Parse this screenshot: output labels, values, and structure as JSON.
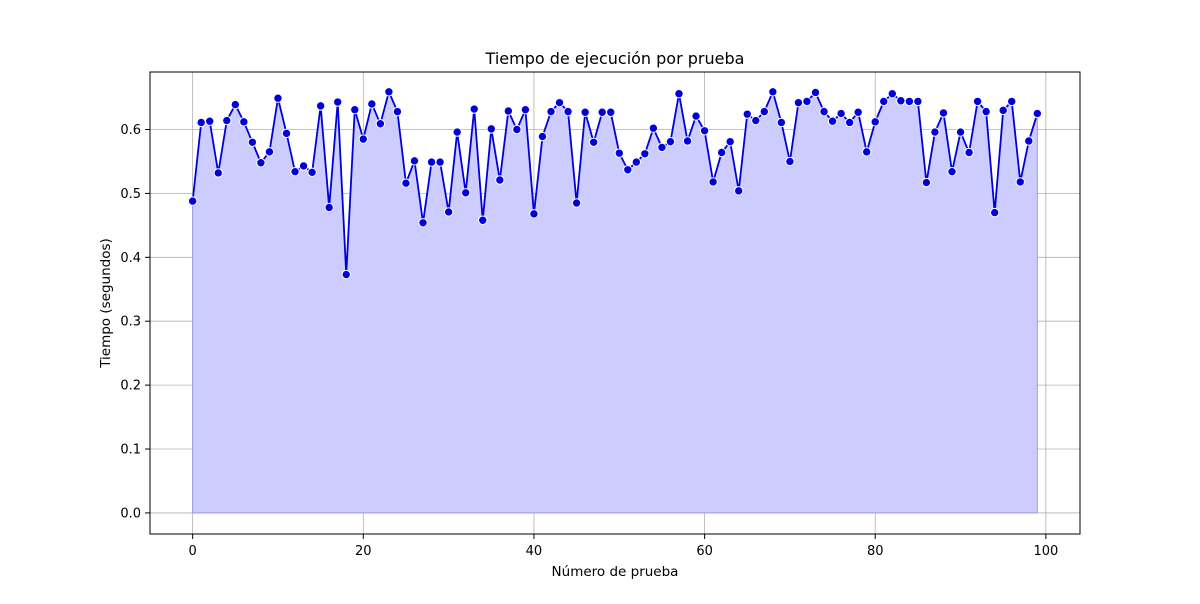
{
  "chart_data": {
    "type": "line",
    "title": "Tiempo de ejecución por prueba",
    "xlabel": "Número de prueba",
    "ylabel": "Tiempo (segundos)",
    "xlim": [
      -5,
      104
    ],
    "ylim": [
      -0.033,
      0.69
    ],
    "xticks": [
      0,
      20,
      40,
      60,
      80,
      100
    ],
    "yticks": [
      0.0,
      0.1,
      0.2,
      0.3,
      0.4,
      0.5,
      0.6
    ],
    "xtick_labels": [
      "0",
      "20",
      "40",
      "60",
      "80",
      "100"
    ],
    "ytick_labels": [
      "0.0",
      "0.1",
      "0.2",
      "0.3",
      "0.4",
      "0.5",
      "0.6"
    ],
    "grid": true,
    "area_fill": true,
    "colors": {
      "line": "#0000dd",
      "marker": "#0000dd",
      "marker_edge": "#ffffff",
      "fill": "#ccccff",
      "grid": "#b0b0b0",
      "axes": "#000000"
    },
    "series": [
      {
        "x": [
          0,
          1,
          2,
          3,
          4,
          5,
          6,
          7,
          8,
          9,
          10,
          11,
          12,
          13,
          14,
          15,
          16,
          17,
          18,
          19,
          20,
          21,
          22,
          23,
          24,
          25,
          26,
          27,
          28,
          29,
          30,
          31,
          32,
          33,
          34,
          35,
          36,
          37,
          38,
          39,
          40,
          41,
          42,
          43,
          44,
          45,
          46,
          47,
          48,
          49,
          50,
          51,
          52,
          53,
          54,
          55,
          56,
          57,
          58,
          59,
          60,
          61,
          62,
          63,
          64,
          65,
          66,
          67,
          68,
          69,
          70,
          71,
          72,
          73,
          74,
          75,
          76,
          77,
          78,
          79,
          80,
          81,
          82,
          83,
          84,
          85,
          86,
          87,
          88,
          89,
          90,
          91,
          92,
          93,
          94,
          95,
          96,
          97,
          98,
          99
        ],
        "values": [
          0.488,
          0.611,
          0.613,
          0.532,
          0.614,
          0.639,
          0.612,
          0.58,
          0.548,
          0.565,
          0.649,
          0.594,
          0.534,
          0.543,
          0.533,
          0.637,
          0.478,
          0.643,
          0.373,
          0.631,
          0.585,
          0.64,
          0.609,
          0.659,
          0.628,
          0.516,
          0.551,
          0.454,
          0.549,
          0.549,
          0.471,
          0.596,
          0.501,
          0.632,
          0.458,
          0.601,
          0.521,
          0.629,
          0.6,
          0.631,
          0.468,
          0.589,
          0.628,
          0.642,
          0.628,
          0.485,
          0.627,
          0.58,
          0.627,
          0.627,
          0.563,
          0.537,
          0.549,
          0.562,
          0.602,
          0.572,
          0.581,
          0.656,
          0.582,
          0.621,
          0.598,
          0.518,
          0.564,
          0.581,
          0.504,
          0.624,
          0.614,
          0.628,
          0.659,
          0.611,
          0.55,
          0.642,
          0.644,
          0.658,
          0.628,
          0.613,
          0.625,
          0.611,
          0.627,
          0.565,
          0.612,
          0.644,
          0.656,
          0.645,
          0.644,
          0.644,
          0.517,
          0.596,
          0.626,
          0.534,
          0.596,
          0.564,
          0.644,
          0.628,
          0.47,
          0.63,
          0.644,
          0.518,
          0.582,
          0.625
        ]
      }
    ]
  }
}
